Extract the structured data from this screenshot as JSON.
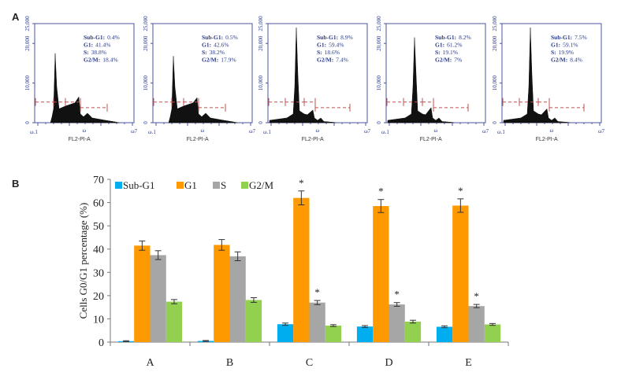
{
  "panel_labels": {
    "a": "A",
    "b": "B"
  },
  "chart_data": [
    {
      "type": "area",
      "title": "Flow cytometry DNA content histograms",
      "xlabel": "FL2-PI-A",
      "ylabel": "",
      "ylim": [
        0,
        25000
      ],
      "y_ticks": [
        "0",
        "10,000",
        "20,000",
        "25,000"
      ],
      "x_ticks": [
        "ω.1",
        "ω",
        "ω7"
      ],
      "x_tick_labels": {
        "left": "ω.1",
        "mid": "ω",
        "right": "ω7"
      },
      "panels": [
        {
          "name": "A",
          "stats": [
            "Sub-G1: 0.4%",
            "G1: 41.4%",
            "S: 38.8%",
            "G2/M: 18.4%"
          ],
          "g1_peak": 17500,
          "g2_peak": 6500
        },
        {
          "name": "B",
          "stats": [
            "Sub-G1: 0.5%",
            "G1: 42.6%",
            "S: 38.2%",
            "G2/M: 17.9%"
          ],
          "g1_peak": 16800,
          "g2_peak": 6300
        },
        {
          "name": "C",
          "stats": [
            "Sub-G1: 8.9%",
            "G1: 59.4%",
            "S: 18.6%",
            "G2/M: 7.4%"
          ],
          "g1_peak": 24000,
          "g2_peak": 3200
        },
        {
          "name": "D",
          "stats": [
            "Sub-G1: 8.2%",
            "G1: 61.2%",
            "S: 19.1%",
            "G2/M: 7%"
          ],
          "g1_peak": 21500,
          "g2_peak": 3800
        },
        {
          "name": "E",
          "stats": [
            "Sub-G1: 7.5%",
            "G1: 59.1%",
            "S: 19.9%",
            "G2/M: 8.4%"
          ],
          "g1_peak": 24000,
          "g2_peak": 3500
        }
      ]
    },
    {
      "type": "bar",
      "title": "",
      "xlabel": "",
      "ylabel": "Cells G0/G1 percentage (%)",
      "ylim": [
        0,
        70
      ],
      "y_ticks": [
        0,
        10,
        20,
        30,
        40,
        50,
        60,
        70
      ],
      "categories": [
        "A",
        "B",
        "C",
        "D",
        "E"
      ],
      "legend_position": "top-left",
      "series": [
        {
          "name": "Sub-G1",
          "color": "#00aeef",
          "values": [
            0.4,
            0.5,
            7.7,
            6.7,
            6.6
          ],
          "errors": [
            0.2,
            0.2,
            0.5,
            0.4,
            0.4
          ],
          "significant": [
            false,
            false,
            false,
            false,
            false
          ]
        },
        {
          "name": "G1",
          "color": "#ff9900",
          "values": [
            41.5,
            41.8,
            62,
            58.5,
            58.7
          ],
          "errors": [
            2.0,
            2.3,
            3.0,
            2.8,
            2.9
          ],
          "significant": [
            false,
            false,
            true,
            true,
            true
          ]
        },
        {
          "name": "S",
          "color": "#a6a6a6",
          "values": [
            37.4,
            36.9,
            17,
            16.2,
            15.5
          ],
          "errors": [
            1.9,
            1.9,
            0.9,
            0.8,
            0.7
          ],
          "significant": [
            false,
            false,
            true,
            true,
            true
          ]
        },
        {
          "name": "G2/M",
          "color": "#92d050",
          "values": [
            17.4,
            18.1,
            7.1,
            8.8,
            7.6
          ],
          "errors": [
            0.9,
            1.0,
            0.4,
            0.6,
            0.4
          ],
          "significant": [
            false,
            false,
            false,
            false,
            false
          ]
        }
      ],
      "significance_marker": "*"
    }
  ]
}
